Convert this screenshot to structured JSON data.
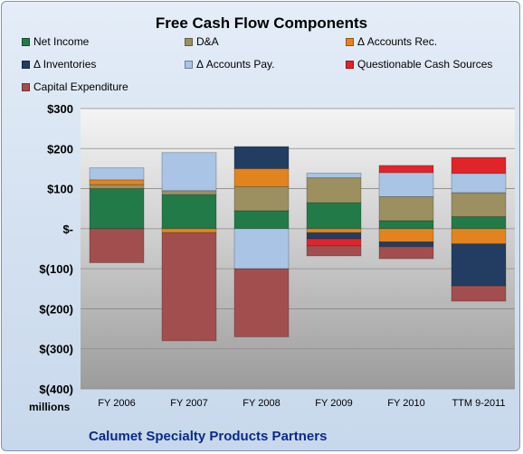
{
  "chart_data": {
    "type": "bar",
    "stacked": true,
    "title": "Free Cash Flow Components",
    "ylabel": "millions",
    "ylim": [
      -400,
      300
    ],
    "yticks": [
      300,
      200,
      100,
      0,
      -100,
      -200,
      -300,
      -400
    ],
    "ytick_labels": [
      "$300",
      "$200",
      "$100",
      "$-",
      "$(100)",
      "$(200)",
      "$(300)",
      "$(400)"
    ],
    "grid": true,
    "legend_position": "top",
    "categories": [
      "FY 2006",
      "FY 2007",
      "FY 2008",
      "FY 2009",
      "FY 2010",
      "TTM 9-2011"
    ],
    "series": [
      {
        "name": "Net Income",
        "color": "#237a49",
        "values": [
          100,
          85,
          45,
          65,
          20,
          30
        ]
      },
      {
        "name": "D&A",
        "color": "#9c9061",
        "values": [
          10,
          10,
          60,
          62,
          60,
          60
        ]
      },
      {
        "name": "Δ Accounts Rec.",
        "color": "#e1841f",
        "values": [
          12,
          -10,
          45,
          -10,
          -33,
          -38
        ]
      },
      {
        "name": "Δ Inventories",
        "color": "#233d62",
        "values": [
          0,
          0,
          55,
          -15,
          -12,
          -105
        ]
      },
      {
        "name": "Δ Accounts Pay.",
        "color": "#a9c4e4",
        "values": [
          30,
          95,
          -100,
          12,
          60,
          48
        ]
      },
      {
        "name": "Questionable Cash Sources",
        "color": "#e0242a",
        "values": [
          0,
          0,
          0,
          -18,
          18,
          40
        ]
      },
      {
        "name": "Capital Expenditure",
        "color": "#a34e4e",
        "values": [
          -85,
          -270,
          -170,
          -25,
          -30,
          -38
        ]
      }
    ]
  },
  "units_label": "millions",
  "footer": "Calumet Specialty Products Partners"
}
